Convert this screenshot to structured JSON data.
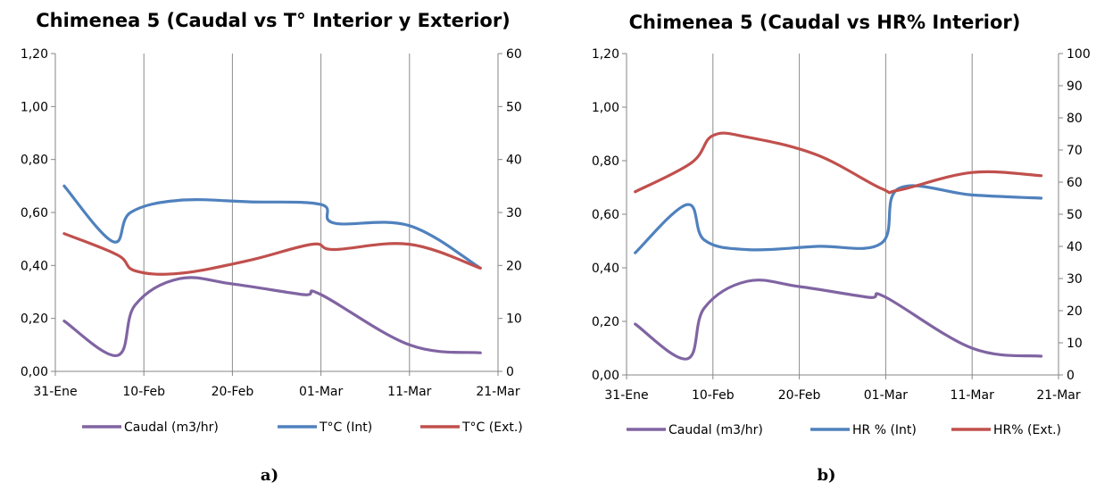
{
  "chart_data": [
    {
      "type": "line",
      "title": "Chimenea 5 (Caudal vs T° Interior y Exterior)",
      "caption": "a)",
      "x_ticks": [
        "31-Ene",
        "10-Feb",
        "20-Feb",
        "01-Mar",
        "11-Mar",
        "21-Mar"
      ],
      "y_left": {
        "min": 0,
        "max": 1.2,
        "step": 0.2,
        "ticks": [
          "0,00",
          "0,20",
          "0,40",
          "0,60",
          "0,80",
          "1,00",
          "1,20"
        ]
      },
      "y_right": {
        "min": 0,
        "max": 60,
        "step": 10,
        "ticks": [
          "0",
          "10",
          "20",
          "30",
          "40",
          "50",
          "60"
        ]
      },
      "grid": "vertical",
      "legend_position": "bottom",
      "series": [
        {
          "name": "Caudal (m3/hr)",
          "axis": "left",
          "color": "#8064A2",
          "x": [
            1,
            7,
            9,
            14,
            20,
            28,
            30,
            40,
            48
          ],
          "y": [
            0.19,
            0.06,
            0.25,
            0.35,
            0.33,
            0.29,
            0.29,
            0.1,
            0.07
          ]
        },
        {
          "name": "T°C (Int)",
          "axis": "right",
          "color": "#4F81BD",
          "x": [
            1,
            6.5,
            8.5,
            14,
            22,
            30,
            31.5,
            40,
            48
          ],
          "y": [
            35,
            24.5,
            30,
            32.3,
            32,
            31.5,
            28,
            27.5,
            19.5
          ]
        },
        {
          "name": "T°C (Ext.)",
          "axis": "right",
          "color": "#C0504D",
          "x": [
            1,
            7,
            9,
            14,
            22,
            29,
            31.5,
            40,
            48
          ],
          "y": [
            26,
            22,
            19,
            18.5,
            21,
            24,
            23,
            24,
            19.5
          ]
        }
      ]
    },
    {
      "type": "line",
      "title": "Chimenea 5 (Caudal vs HR% Interior)",
      "caption": "b)",
      "x_ticks": [
        "31-Ene",
        "10-Feb",
        "20-Feb",
        "01-Mar",
        "11-Mar",
        "21-Mar"
      ],
      "y_left": {
        "min": 0,
        "max": 1.2,
        "step": 0.2,
        "ticks": [
          "0,00",
          "0,20",
          "0,40",
          "0,60",
          "0,80",
          "1,00",
          "1,20"
        ]
      },
      "y_right": {
        "min": 0,
        "max": 100,
        "step": 10,
        "ticks": [
          "0",
          "10",
          "20",
          "30",
          "40",
          "50",
          "60",
          "70",
          "80",
          "90",
          "100"
        ]
      },
      "grid": "vertical",
      "legend_position": "bottom",
      "series": [
        {
          "name": "Caudal (m3/hr)",
          "axis": "left",
          "color": "#8064A2",
          "x": [
            1,
            7,
            9,
            14,
            20,
            28,
            30,
            40,
            48
          ],
          "y": [
            0.19,
            0.06,
            0.25,
            0.35,
            0.33,
            0.29,
            0.29,
            0.1,
            0.07
          ]
        },
        {
          "name": "HR % (Int)",
          "axis": "right",
          "color": "#4F81BD",
          "x": [
            1,
            7,
            9,
            14,
            22,
            29.5,
            31.5,
            40,
            48
          ],
          "y": [
            38,
            53,
            42,
            39,
            40,
            41,
            58,
            56,
            55
          ]
        },
        {
          "name": "HR% (Ext.)",
          "axis": "right",
          "color": "#C0504D",
          "x": [
            1,
            7.5,
            10,
            14,
            22,
            29.5,
            31.5,
            40,
            48
          ],
          "y": [
            57,
            66,
            74.5,
            74,
            68.5,
            58,
            57.5,
            63,
            62
          ]
        }
      ]
    }
  ]
}
